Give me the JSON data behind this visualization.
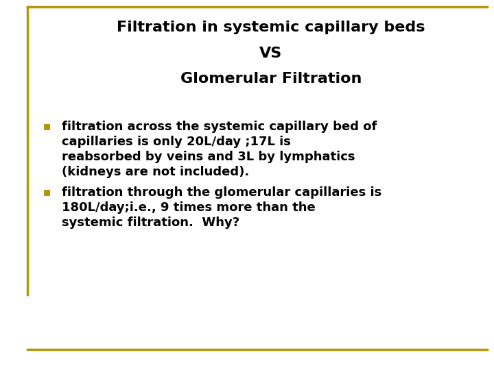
{
  "title_line1": "Filtration in systemic capillary beds",
  "title_line2": "VS",
  "title_line3": "Glomerular Filtration",
  "bullet1_lines": [
    "filtration across the systemic capillary bed of",
    "capillaries is only 20L/day ;17L is",
    "reabsorbed by veins and 3L by lymphatics",
    "(kidneys are not included)."
  ],
  "bullet2_lines": [
    "filtration through the glomerular capillaries is",
    "180L/day;i.e., 9 times more than the",
    "systemic filtration.  Why?"
  ],
  "background_color": "#ffffff",
  "border_color": "#b8960c",
  "title_color": "#000000",
  "bullet_color": "#000000",
  "bullet_square_color": "#b8960c",
  "title_fontsize": 16,
  "bullet_fontsize": 13,
  "border_linewidth": 2.5
}
